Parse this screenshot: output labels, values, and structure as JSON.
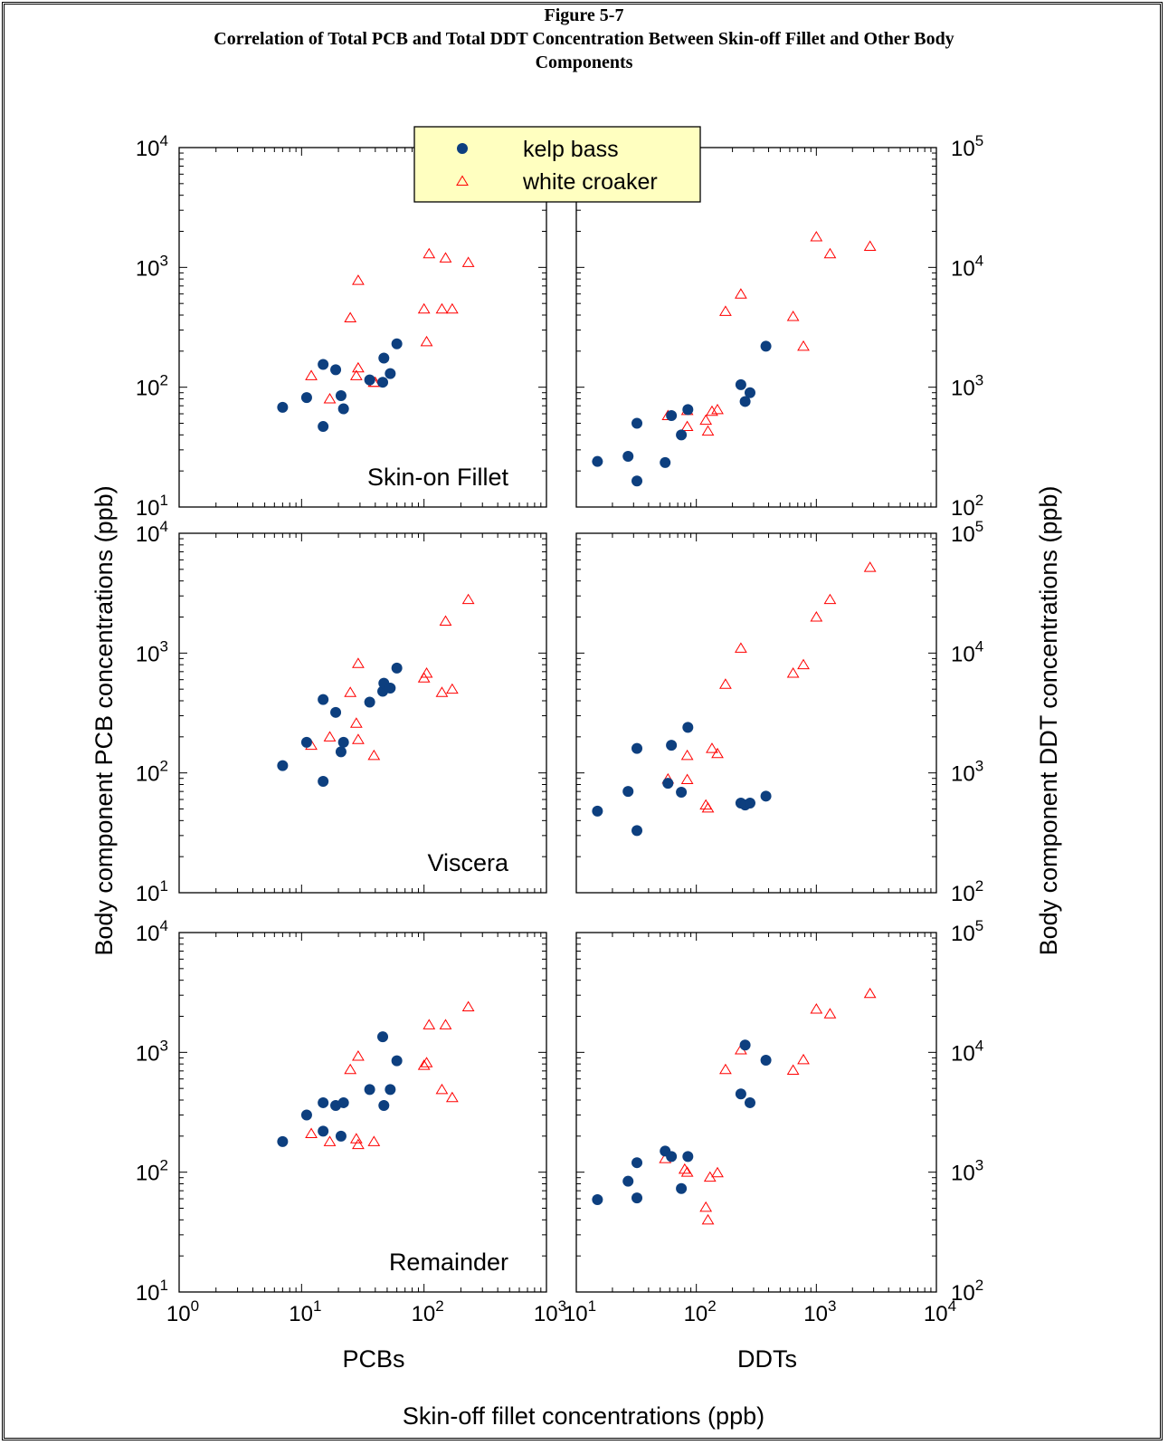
{
  "figure": {
    "label": "Figure 5-7",
    "title_line1": "Correlation of Total PCB and Total DDT Concentration Between Skin-off Fillet and Other Body",
    "title_line2": "Components"
  },
  "chart_data": {
    "type": "scatter",
    "scale": "log",
    "xlabel": "Skin-off fillet concentrations (ppb)",
    "ylabel_left": "Body component PCB concentrations (ppb)",
    "ylabel_right": "Body component DDT concentrations (ppb)",
    "columns": [
      {
        "name": "PCBs",
        "xlim": [
          1,
          1000
        ],
        "ylim": [
          10,
          10000
        ]
      },
      {
        "name": "DDTs",
        "xlim": [
          10,
          10000
        ],
        "ylim": [
          100,
          100000
        ]
      }
    ],
    "rows": [
      "Skin-on Fillet",
      "Viscera",
      "Remainder"
    ],
    "legend": {
      "position": "top-center",
      "entries": [
        {
          "name": "kelp bass",
          "marker": "filled-circle",
          "color": "#0d3f7f"
        },
        {
          "name": "white croaker",
          "marker": "open-triangle",
          "color": "#ff0000"
        }
      ]
    },
    "panels": [
      {
        "column": "PCBs",
        "row": "Skin-on Fillet",
        "kelp_bass": [
          [
            7,
            68
          ],
          [
            11,
            82
          ],
          [
            15,
            155
          ],
          [
            15,
            47
          ],
          [
            19,
            140
          ],
          [
            21,
            85
          ],
          [
            22,
            66
          ],
          [
            36,
            115
          ],
          [
            46,
            110
          ],
          [
            47,
            175
          ],
          [
            53,
            130
          ],
          [
            60,
            230
          ]
        ],
        "white_croaker": [
          [
            12,
            125
          ],
          [
            17,
            80
          ],
          [
            25,
            380
          ],
          [
            29,
            780
          ],
          [
            28,
            125
          ],
          [
            29,
            145
          ],
          [
            39,
            110
          ],
          [
            40,
            110
          ],
          [
            100,
            450
          ],
          [
            105,
            240
          ],
          [
            110,
            1300
          ],
          [
            140,
            450
          ],
          [
            150,
            1200
          ],
          [
            170,
            450
          ],
          [
            230,
            1100
          ]
        ]
      },
      {
        "column": "PCBs",
        "row": "Viscera",
        "kelp_bass": [
          [
            7,
            115
          ],
          [
            11,
            180
          ],
          [
            15,
            410
          ],
          [
            15,
            85
          ],
          [
            19,
            320
          ],
          [
            21,
            150
          ],
          [
            22,
            180
          ],
          [
            36,
            390
          ],
          [
            46,
            480
          ],
          [
            47,
            560
          ],
          [
            53,
            510
          ],
          [
            60,
            750
          ]
        ],
        "white_croaker": [
          [
            12,
            170
          ],
          [
            17,
            200
          ],
          [
            25,
            470
          ],
          [
            29,
            820
          ],
          [
            28,
            260
          ],
          [
            29,
            190
          ],
          [
            39,
            140
          ],
          [
            100,
            620
          ],
          [
            105,
            680
          ],
          [
            140,
            470
          ],
          [
            150,
            1850
          ],
          [
            170,
            500
          ],
          [
            230,
            2800
          ]
        ]
      },
      {
        "column": "PCBs",
        "row": "Remainder",
        "kelp_bass": [
          [
            7,
            180
          ],
          [
            11,
            300
          ],
          [
            15,
            380
          ],
          [
            15,
            220
          ],
          [
            19,
            360
          ],
          [
            21,
            200
          ],
          [
            22,
            380
          ],
          [
            36,
            490
          ],
          [
            46,
            1350
          ],
          [
            47,
            360
          ],
          [
            53,
            490
          ],
          [
            60,
            850
          ]
        ],
        "white_croaker": [
          [
            12,
            210
          ],
          [
            17,
            180
          ],
          [
            25,
            720
          ],
          [
            29,
            930
          ],
          [
            28,
            190
          ],
          [
            29,
            170
          ],
          [
            39,
            180
          ],
          [
            100,
            780
          ],
          [
            105,
            820
          ],
          [
            110,
            1700
          ],
          [
            140,
            490
          ],
          [
            150,
            1700
          ],
          [
            170,
            420
          ],
          [
            230,
            2400
          ]
        ]
      },
      {
        "column": "DDTs",
        "row": "Skin-on Fillet",
        "kelp_bass": [
          [
            15,
            240
          ],
          [
            27,
            265
          ],
          [
            32,
            500
          ],
          [
            32,
            165
          ],
          [
            55,
            235
          ],
          [
            62,
            580
          ],
          [
            75,
            400
          ],
          [
            85,
            650
          ],
          [
            235,
            1050
          ],
          [
            255,
            760
          ],
          [
            280,
            900
          ],
          [
            380,
            2200
          ]
        ],
        "white_croaker": [
          [
            58,
            580
          ],
          [
            84,
            640
          ],
          [
            84,
            470
          ],
          [
            120,
            530
          ],
          [
            125,
            430
          ],
          [
            135,
            630
          ],
          [
            150,
            650
          ],
          [
            175,
            4300
          ],
          [
            235,
            6000
          ],
          [
            640,
            3900
          ],
          [
            780,
            2200
          ],
          [
            1000,
            18000
          ],
          [
            1300,
            13000
          ],
          [
            2800,
            15000
          ]
        ]
      },
      {
        "column": "DDTs",
        "row": "Viscera",
        "kelp_bass": [
          [
            15,
            480
          ],
          [
            27,
            700
          ],
          [
            32,
            330
          ],
          [
            32,
            1600
          ],
          [
            58,
            820
          ],
          [
            62,
            1700
          ],
          [
            75,
            690
          ],
          [
            85,
            2400
          ],
          [
            235,
            560
          ],
          [
            255,
            540
          ],
          [
            280,
            560
          ],
          [
            380,
            640
          ]
        ],
        "white_croaker": [
          [
            58,
            890
          ],
          [
            84,
            880
          ],
          [
            84,
            1400
          ],
          [
            120,
            540
          ],
          [
            125,
            510
          ],
          [
            135,
            1600
          ],
          [
            150,
            1450
          ],
          [
            175,
            5500
          ],
          [
            235,
            11000
          ],
          [
            640,
            6800
          ],
          [
            780,
            8000
          ],
          [
            1000,
            20000
          ],
          [
            1300,
            28000
          ],
          [
            2800,
            52000
          ]
        ]
      },
      {
        "column": "DDTs",
        "row": "Remainder",
        "kelp_bass": [
          [
            15,
            590
          ],
          [
            27,
            840
          ],
          [
            32,
            1200
          ],
          [
            32,
            610
          ],
          [
            55,
            1500
          ],
          [
            62,
            1350
          ],
          [
            75,
            730
          ],
          [
            85,
            1350
          ],
          [
            235,
            4500
          ],
          [
            255,
            11500
          ],
          [
            280,
            3800
          ],
          [
            380,
            8600
          ]
        ],
        "white_croaker": [
          [
            55,
            1300
          ],
          [
            80,
            1060
          ],
          [
            84,
            1000
          ],
          [
            120,
            510
          ],
          [
            125,
            400
          ],
          [
            130,
            910
          ],
          [
            150,
            990
          ],
          [
            175,
            7200
          ],
          [
            235,
            10500
          ],
          [
            640,
            7100
          ],
          [
            780,
            8700
          ],
          [
            1000,
            23000
          ],
          [
            1300,
            21000
          ],
          [
            2800,
            31000
          ]
        ]
      }
    ]
  }
}
